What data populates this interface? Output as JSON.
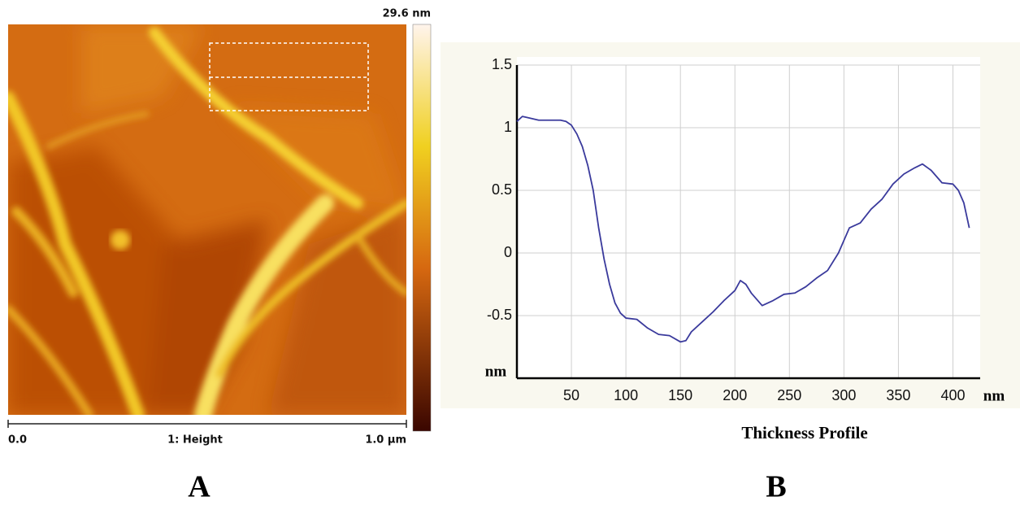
{
  "image_panel": {
    "color_scale_max": "29.6 nm",
    "scale_start": "0.0",
    "channel": "1: Height",
    "scale_end": "1.0 µm",
    "panel_label": "A"
  },
  "chart_data": {
    "type": "line",
    "title": "Thickness Profile",
    "panel_label": "B",
    "x_label": "nm",
    "y_label": "nm",
    "x": [
      0,
      5,
      10,
      20,
      30,
      40,
      45,
      50,
      55,
      60,
      65,
      70,
      75,
      80,
      85,
      90,
      95,
      100,
      110,
      120,
      130,
      140,
      150,
      155,
      160,
      170,
      180,
      190,
      200,
      205,
      210,
      215,
      225,
      235,
      245,
      255,
      265,
      275,
      285,
      295,
      305,
      315,
      325,
      335,
      345,
      355,
      365,
      372,
      380,
      390,
      400,
      405,
      410,
      415
    ],
    "values": [
      1.05,
      1.09,
      1.08,
      1.06,
      1.06,
      1.06,
      1.05,
      1.02,
      0.95,
      0.85,
      0.7,
      0.5,
      0.2,
      -0.05,
      -0.25,
      -0.4,
      -0.48,
      -0.52,
      -0.53,
      -0.6,
      -0.65,
      -0.66,
      -0.71,
      -0.7,
      -0.63,
      -0.55,
      -0.47,
      -0.38,
      -0.3,
      -0.22,
      -0.25,
      -0.32,
      -0.42,
      -0.38,
      -0.33,
      -0.32,
      -0.27,
      -0.2,
      -0.14,
      0,
      0.2,
      0.24,
      0.35,
      0.43,
      0.55,
      0.63,
      0.68,
      0.71,
      0.66,
      0.56,
      0.55,
      0.5,
      0.4,
      0.2
    ],
    "color": "#3a3a9c",
    "xlim": [
      0,
      425
    ],
    "ylim": [
      -1,
      1.5
    ],
    "xticks": [
      50,
      100,
      150,
      200,
      250,
      300,
      350,
      400
    ],
    "yticks": [
      1.5,
      1,
      0.5,
      0,
      -0.5
    ],
    "grid": true
  }
}
